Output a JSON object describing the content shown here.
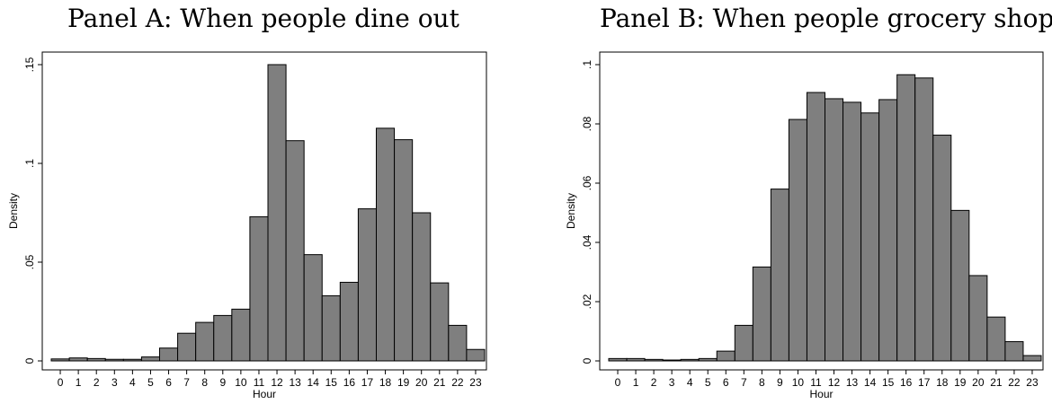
{
  "chart_data": [
    {
      "type": "bar",
      "title": "Panel A: When people dine out",
      "xlabel": "Hour",
      "ylabel": "Density",
      "ylim": [
        0,
        0.15
      ],
      "yticks": [
        0,
        0.05,
        0.1,
        0.15
      ],
      "ytick_labels": [
        "0",
        ".05",
        ".1",
        ".15"
      ],
      "categories": [
        "0",
        "1",
        "2",
        "3",
        "4",
        "5",
        "6",
        "7",
        "8",
        "9",
        "10",
        "11",
        "12",
        "13",
        "14",
        "15",
        "16",
        "17",
        "18",
        "19",
        "20",
        "21",
        "22",
        "23"
      ],
      "values": [
        0.001,
        0.0015,
        0.0012,
        0.0008,
        0.0008,
        0.002,
        0.0065,
        0.014,
        0.0195,
        0.023,
        0.0262,
        0.073,
        0.15,
        0.1115,
        0.0538,
        0.033,
        0.0398,
        0.077,
        0.1178,
        0.112,
        0.075,
        0.0395,
        0.018,
        0.0058
      ],
      "grid": false,
      "bar_color": "#7f7f7f"
    },
    {
      "type": "bar",
      "title": "Panel B: When people grocery shop",
      "xlabel": "Hour",
      "ylabel": "Density",
      "ylim": [
        0,
        0.1
      ],
      "yticks": [
        0,
        0.02,
        0.04,
        0.06,
        0.08,
        0.1
      ],
      "ytick_labels": [
        "0",
        ".02",
        ".04",
        ".06",
        ".08",
        ".1"
      ],
      "categories": [
        "0",
        "1",
        "2",
        "3",
        "4",
        "5",
        "6",
        "7",
        "8",
        "9",
        "10",
        "11",
        "12",
        "13",
        "14",
        "15",
        "16",
        "17",
        "18",
        "19",
        "20",
        "21",
        "22",
        "23"
      ],
      "values": [
        0.0008,
        0.0008,
        0.0005,
        0.0003,
        0.0005,
        0.0008,
        0.0033,
        0.012,
        0.0317,
        0.058,
        0.0815,
        0.0906,
        0.0885,
        0.0873,
        0.0837,
        0.0882,
        0.0966,
        0.0955,
        0.0762,
        0.0508,
        0.0288,
        0.0148,
        0.0065,
        0.0018
      ],
      "grid": false,
      "bar_color": "#7f7f7f"
    }
  ]
}
